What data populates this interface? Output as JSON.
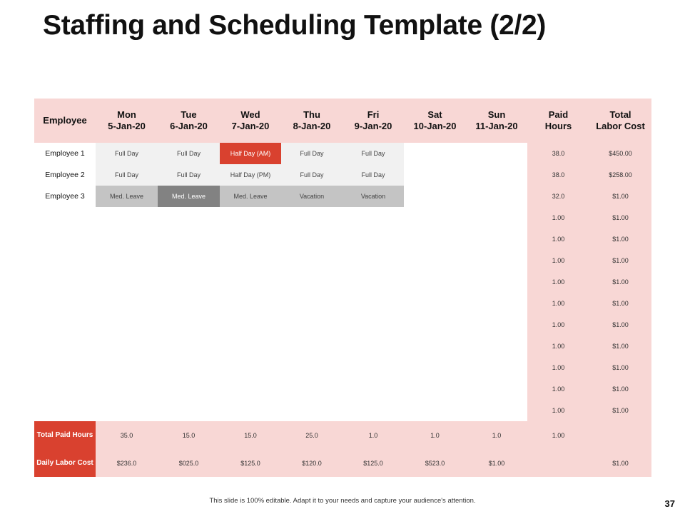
{
  "title": "Staffing and Scheduling Template (2/2)",
  "table": {
    "headers": [
      {
        "line1": "Employee",
        "line2": ""
      },
      {
        "line1": "Mon",
        "line2": "5-Jan-20"
      },
      {
        "line1": "Tue",
        "line2": "6-Jan-20"
      },
      {
        "line1": "Wed",
        "line2": "7-Jan-20"
      },
      {
        "line1": "Thu",
        "line2": "8-Jan-20"
      },
      {
        "line1": "Fri",
        "line2": "9-Jan-20"
      },
      {
        "line1": "Sat",
        "line2": "10-Jan-20"
      },
      {
        "line1": "Sun",
        "line2": "11-Jan-20"
      },
      {
        "line1": "Paid",
        "line2": "Hours"
      },
      {
        "line1": "Total",
        "line2": "Labor Cost"
      }
    ],
    "employees": [
      {
        "name": "Employee  1",
        "days": [
          "Full Day",
          "Full Day",
          "Half Day (AM)",
          "Full Day",
          "Full Day",
          "",
          ""
        ],
        "paid_hours": "38.0",
        "labor_cost": "$450.00"
      },
      {
        "name": "Employee  2",
        "days": [
          "Full Day",
          "Full Day",
          "Half Day (PM)",
          "Full Day",
          "Full Day",
          "",
          ""
        ],
        "paid_hours": "38.0",
        "labor_cost": "$258.00"
      },
      {
        "name": "Employee  3",
        "days": [
          "Med. Leave",
          "Med. Leave",
          "Med. Leave",
          "Vacation",
          "Vacation",
          "",
          ""
        ],
        "paid_hours": "32.0",
        "labor_cost": "$1.00"
      }
    ],
    "empty_rows": [
      {
        "paid_hours": "1.00",
        "labor_cost": "$1.00"
      },
      {
        "paid_hours": "1.00",
        "labor_cost": "$1.00"
      },
      {
        "paid_hours": "1.00",
        "labor_cost": "$1.00"
      },
      {
        "paid_hours": "1.00",
        "labor_cost": "$1.00"
      },
      {
        "paid_hours": "1.00",
        "labor_cost": "$1.00"
      },
      {
        "paid_hours": "1.00",
        "labor_cost": "$1.00"
      },
      {
        "paid_hours": "1.00",
        "labor_cost": "$1.00"
      },
      {
        "paid_hours": "1.00",
        "labor_cost": "$1.00"
      },
      {
        "paid_hours": "1.00",
        "labor_cost": "$1.00"
      },
      {
        "paid_hours": "1.00",
        "labor_cost": "$1.00"
      }
    ],
    "total_paid_hours": {
      "label": "Total Paid Hours",
      "values": [
        "35.0",
        "15.0",
        "15.0",
        "25.0",
        "1.0",
        "1.0",
        "1.0",
        "1.00",
        ""
      ]
    },
    "daily_labor_cost": {
      "label": "Daily Labor Cost",
      "values": [
        "$236.0",
        "$025.0",
        "$125.0",
        "$120.0",
        "$125.0",
        "$523.0",
        "$1.00",
        "",
        "$1.00"
      ]
    }
  },
  "cell_colors": {
    "header_bg": "#f8d7d5",
    "full_day": "#f1f1f1",
    "half_day_am": "#d9412f",
    "med_leave": "#c4c4c4",
    "med_leave_dark": "#828282",
    "vacation": "#c4c4c4",
    "summary_label": "#d9412f"
  },
  "footer": "This slide is 100% editable. Adapt it to your needs and capture your audience's attention.",
  "page_number": "37"
}
